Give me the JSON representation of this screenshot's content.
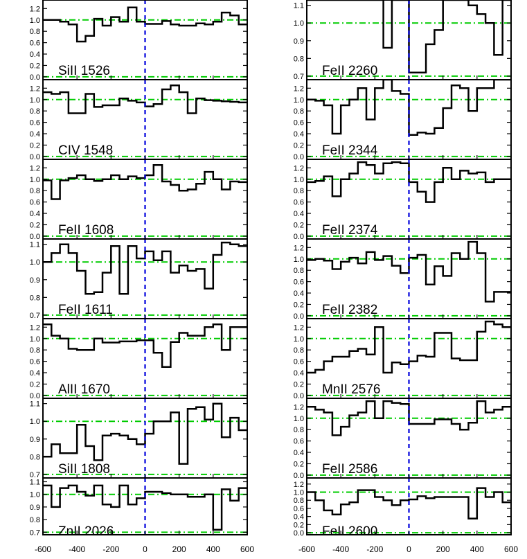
{
  "chart_data": {
    "type": "line",
    "x_range": [
      -600,
      600
    ],
    "x_ticks": [
      -600,
      -400,
      -200,
      0,
      200,
      400,
      600
    ],
    "x_tick_labels": [
      "-600",
      "-400",
      "-200",
      "0",
      "200",
      "400",
      "600"
    ],
    "grid": false,
    "colors": {
      "flux": "#000000",
      "continuum": "#00cc00",
      "zero_velocity": "#0000dd"
    },
    "panels": [
      {
        "label": "SiII 1526",
        "column": 0,
        "ylim": [
          -0.05,
          1.35
        ],
        "yticks": [
          0.0,
          0.2,
          0.4,
          0.6,
          0.8,
          1.0,
          1.2
        ],
        "ytick_labels": [
          "0.0",
          "0.2",
          "0.4",
          "0.6",
          "0.8",
          "1.0",
          "1.2"
        ],
        "continuum": [
          0.0,
          1.0
        ],
        "x": [
          -600,
          -550,
          -500,
          -450,
          -400,
          -350,
          -300,
          -250,
          -200,
          -150,
          -100,
          -50,
          0,
          50,
          100,
          150,
          200,
          250,
          300,
          350,
          400,
          450,
          500,
          550
        ],
        "y": [
          1.0,
          1.0,
          0.97,
          0.92,
          0.62,
          0.72,
          1.02,
          0.9,
          1.05,
          0.97,
          1.22,
          0.97,
          0.93,
          0.93,
          0.98,
          0.92,
          0.9,
          0.9,
          0.94,
          0.92,
          0.97,
          1.13,
          1.08,
          0.92
        ]
      },
      {
        "label": "CIV 1548",
        "column": 0,
        "ylim": [
          -0.05,
          1.35
        ],
        "yticks": [
          0.0,
          0.2,
          0.4,
          0.6,
          0.8,
          1.0,
          1.2
        ],
        "ytick_labels": [
          "0.0",
          "0.2",
          "0.4",
          "0.6",
          "0.8",
          "1.0",
          "1.2"
        ],
        "continuum": [
          0.0,
          1.0
        ],
        "x": [
          -600,
          -550,
          -500,
          -450,
          -400,
          -350,
          -300,
          -250,
          -200,
          -150,
          -100,
          -50,
          0,
          50,
          100,
          150,
          200,
          250,
          300,
          350,
          400,
          450,
          500,
          550
        ],
        "y": [
          1.13,
          1.1,
          1.13,
          0.76,
          0.76,
          1.1,
          0.87,
          0.9,
          0.9,
          1.02,
          0.98,
          0.95,
          0.88,
          0.92,
          1.18,
          1.25,
          1.13,
          0.76,
          1.02,
          0.99,
          0.98,
          0.97,
          0.96,
          0.95
        ]
      },
      {
        "label": "FeII 1608",
        "column": 0,
        "ylim": [
          -0.05,
          1.35
        ],
        "yticks": [
          0.0,
          0.2,
          0.4,
          0.6,
          0.8,
          1.0,
          1.2
        ],
        "ytick_labels": [
          "0.0",
          "0.2",
          "0.4",
          "0.6",
          "0.8",
          "1.0",
          "1.2"
        ],
        "continuum": [
          0.0,
          1.0
        ],
        "x": [
          -600,
          -550,
          -500,
          -450,
          -400,
          -350,
          -300,
          -250,
          -200,
          -150,
          -100,
          -50,
          0,
          50,
          100,
          150,
          200,
          250,
          300,
          350,
          400,
          450,
          500,
          550
        ],
        "y": [
          0.98,
          0.65,
          0.98,
          1.02,
          1.07,
          1.0,
          0.97,
          1.0,
          1.07,
          1.0,
          1.05,
          1.02,
          1.07,
          1.25,
          0.96,
          0.9,
          0.8,
          0.82,
          0.92,
          1.13,
          1.0,
          0.82,
          0.96,
          0.95
        ]
      },
      {
        "label": "FeII 1611",
        "column": 0,
        "ylim": [
          0.68,
          1.13
        ],
        "yticks": [
          0.7,
          0.8,
          0.9,
          1.0,
          1.1
        ],
        "ytick_labels": [
          "0.7",
          "0.8",
          "0.9",
          "1.0",
          "1.1"
        ],
        "continuum": [
          0.7,
          1.0
        ],
        "x": [
          -600,
          -550,
          -500,
          -450,
          -400,
          -350,
          -300,
          -250,
          -200,
          -150,
          -100,
          -50,
          0,
          50,
          100,
          150,
          200,
          250,
          300,
          350,
          400,
          450,
          500,
          550
        ],
        "y": [
          1.0,
          1.05,
          1.1,
          1.05,
          0.95,
          0.82,
          0.83,
          0.94,
          1.09,
          0.82,
          1.09,
          1.02,
          1.06,
          1.01,
          1.06,
          0.94,
          0.98,
          0.95,
          0.96,
          0.85,
          1.04,
          1.11,
          1.1,
          1.09
        ]
      },
      {
        "label": "AlII 1670",
        "column": 0,
        "ylim": [
          -0.05,
          1.35
        ],
        "yticks": [
          0.0,
          0.2,
          0.4,
          0.6,
          0.8,
          1.0,
          1.2
        ],
        "ytick_labels": [
          "0.0",
          "0.2",
          "0.4",
          "0.6",
          "0.8",
          "1.0",
          "1.2"
        ],
        "continuum": [
          0.0,
          1.0
        ],
        "x": [
          -600,
          -550,
          -500,
          -450,
          -400,
          -350,
          -300,
          -250,
          -200,
          -150,
          -100,
          -50,
          0,
          50,
          100,
          150,
          200,
          250,
          300,
          350,
          400,
          450,
          500,
          550
        ],
        "y": [
          1.25,
          1.05,
          1.0,
          0.82,
          0.8,
          0.8,
          1.0,
          0.93,
          0.93,
          0.95,
          0.95,
          0.97,
          0.97,
          0.75,
          0.5,
          0.94,
          1.1,
          1.05,
          1.05,
          1.2,
          1.25,
          0.8,
          1.2,
          1.2
        ]
      },
      {
        "label": "SiII 1808",
        "column": 0,
        "ylim": [
          0.68,
          1.13
        ],
        "yticks": [
          0.7,
          0.8,
          0.9,
          1.0,
          1.1
        ],
        "ytick_labels": [
          "0.7",
          "0.8",
          "0.9",
          "1.0",
          "1.1"
        ],
        "continuum": [
          0.7,
          1.0
        ],
        "x": [
          -600,
          -550,
          -500,
          -450,
          -400,
          -350,
          -300,
          -250,
          -200,
          -150,
          -100,
          -50,
          0,
          50,
          100,
          150,
          200,
          250,
          300,
          350,
          400,
          450,
          500,
          550
        ],
        "y": [
          0.8,
          0.87,
          0.82,
          0.82,
          0.98,
          0.86,
          0.78,
          0.92,
          0.93,
          0.92,
          0.9,
          0.87,
          0.93,
          1.0,
          1.0,
          1.05,
          0.76,
          1.07,
          1.08,
          1.01,
          1.1,
          0.91,
          1.02,
          0.95
        ]
      },
      {
        "label": "ZnII 2026",
        "column": 0,
        "ylim": [
          0.68,
          1.13
        ],
        "yticks": [
          0.7,
          0.8,
          0.9,
          1.0,
          1.1
        ],
        "ytick_labels": [
          "0.7",
          "0.8",
          "0.9",
          "1.0",
          "1.1"
        ],
        "continuum": [
          0.7,
          1.0
        ],
        "x": [
          -600,
          -550,
          -500,
          -450,
          -400,
          -350,
          -300,
          -250,
          -200,
          -150,
          -100,
          -50,
          0,
          50,
          100,
          150,
          200,
          250,
          300,
          350,
          400,
          450,
          500,
          550
        ],
        "y": [
          1.07,
          0.9,
          1.05,
          1.07,
          1.02,
          0.99,
          1.07,
          0.92,
          0.9,
          1.07,
          0.92,
          0.97,
          1.02,
          1.02,
          1.01,
          1.0,
          1.0,
          0.98,
          0.98,
          1.0,
          0.72,
          1.04,
          0.95,
          1.05
        ]
      },
      {
        "label": "FeII 2260",
        "column": 1,
        "ylim": [
          0.68,
          1.13
        ],
        "yticks": [
          0.7,
          0.8,
          0.9,
          1.0,
          1.1
        ],
        "ytick_labels": [
          "0.7",
          "0.8",
          "0.9",
          "1.0",
          "1.1"
        ],
        "continuum": [
          0.7,
          1.0
        ],
        "x": [
          -600,
          -550,
          -500,
          -450,
          -400,
          -350,
          -300,
          -250,
          -200,
          -150,
          -100,
          -50,
          0,
          50,
          100,
          150,
          200,
          250,
          300,
          350,
          400,
          450,
          500,
          550
        ],
        "y": [
          1.13,
          1.13,
          1.13,
          1.13,
          1.13,
          1.13,
          1.13,
          1.13,
          1.13,
          0.86,
          1.13,
          1.13,
          0.72,
          0.72,
          0.88,
          0.96,
          1.13,
          1.13,
          1.13,
          1.1,
          1.05,
          1.0,
          0.82,
          1.13
        ]
      },
      {
        "label": "FeII 2344",
        "column": 1,
        "ylim": [
          -0.05,
          1.35
        ],
        "yticks": [
          0.0,
          0.2,
          0.4,
          0.6,
          0.8,
          1.0,
          1.2
        ],
        "ytick_labels": [
          "0.0",
          "0.2",
          "0.4",
          "0.6",
          "0.8",
          "1.0",
          "1.2"
        ],
        "continuum": [
          0.0,
          1.0
        ],
        "x": [
          -600,
          -550,
          -500,
          -450,
          -400,
          -350,
          -300,
          -250,
          -200,
          -150,
          -100,
          -50,
          0,
          50,
          100,
          150,
          200,
          250,
          300,
          350,
          400,
          450,
          500,
          550
        ],
        "y": [
          1.0,
          0.98,
          0.9,
          0.4,
          0.9,
          1.0,
          1.2,
          0.65,
          1.2,
          1.35,
          1.15,
          1.1,
          0.38,
          0.42,
          0.4,
          0.5,
          0.85,
          1.25,
          1.2,
          0.8,
          1.2,
          1.2,
          1.35,
          1.35
        ]
      },
      {
        "label": "FeII 2374",
        "column": 1,
        "ylim": [
          -0.05,
          1.35
        ],
        "yticks": [
          0.0,
          0.2,
          0.4,
          0.6,
          0.8,
          1.0,
          1.2
        ],
        "ytick_labels": [
          "0.0",
          "0.2",
          "0.4",
          "0.6",
          "0.8",
          "1.0",
          "1.2"
        ],
        "continuum": [
          0.0,
          1.0
        ],
        "x": [
          -600,
          -550,
          -500,
          -450,
          -400,
          -350,
          -300,
          -250,
          -200,
          -150,
          -100,
          -50,
          0,
          50,
          100,
          150,
          200,
          250,
          300,
          350,
          400,
          450,
          500,
          550
        ],
        "y": [
          0.95,
          0.97,
          1.05,
          0.7,
          1.0,
          1.1,
          1.3,
          1.25,
          1.1,
          1.28,
          1.3,
          1.28,
          0.95,
          0.78,
          0.6,
          0.95,
          1.2,
          1.0,
          1.15,
          1.1,
          1.12,
          0.95,
          1.0,
          1.0
        ]
      },
      {
        "label": "FeII 2382",
        "column": 1,
        "ylim": [
          -0.05,
          1.35
        ],
        "yticks": [
          0.0,
          0.2,
          0.4,
          0.6,
          0.8,
          1.0,
          1.2
        ],
        "ytick_labels": [
          "0.0",
          "0.2",
          "0.4",
          "0.6",
          "0.8",
          "1.0",
          "1.2"
        ],
        "continuum": [
          0.0,
          1.0
        ],
        "x": [
          -600,
          -550,
          -500,
          -450,
          -400,
          -350,
          -300,
          -250,
          -200,
          -150,
          -100,
          -50,
          0,
          50,
          100,
          150,
          200,
          250,
          300,
          350,
          400,
          450,
          500,
          550
        ],
        "y": [
          0.98,
          1.0,
          0.97,
          0.82,
          0.95,
          1.02,
          0.92,
          1.12,
          0.98,
          1.05,
          0.88,
          0.75,
          1.02,
          1.07,
          0.55,
          0.87,
          0.7,
          1.1,
          1.0,
          1.3,
          1.1,
          0.25,
          0.42,
          0.42
        ]
      },
      {
        "label": "MnII 2576",
        "column": 1,
        "ylim": [
          -0.05,
          1.35
        ],
        "yticks": [
          0.0,
          0.2,
          0.4,
          0.6,
          0.8,
          1.0,
          1.2
        ],
        "ytick_labels": [
          "0.0",
          "0.2",
          "0.4",
          "0.6",
          "0.8",
          "1.0",
          "1.2"
        ],
        "continuum": [
          0.0,
          1.0
        ],
        "x": [
          -600,
          -550,
          -500,
          -450,
          -400,
          -350,
          -300,
          -250,
          -200,
          -150,
          -100,
          -50,
          0,
          50,
          100,
          150,
          200,
          250,
          300,
          350,
          400,
          450,
          500,
          550
        ],
        "y": [
          0.4,
          0.45,
          0.6,
          0.68,
          0.68,
          0.78,
          0.82,
          0.72,
          1.2,
          0.4,
          0.58,
          0.55,
          0.6,
          0.7,
          0.68,
          1.1,
          1.1,
          0.65,
          0.62,
          0.62,
          1.12,
          1.3,
          1.25,
          1.2
        ]
      },
      {
        "label": "FeII 2586",
        "column": 1,
        "ylim": [
          -0.05,
          1.35
        ],
        "yticks": [
          0.0,
          0.2,
          0.4,
          0.6,
          0.8,
          1.0,
          1.2
        ],
        "ytick_labels": [
          "0.0",
          "0.2",
          "0.4",
          "0.6",
          "0.8",
          "1.0",
          "1.2"
        ],
        "continuum": [
          0.0,
          1.0
        ],
        "x": [
          -600,
          -550,
          -500,
          -450,
          -400,
          -350,
          -300,
          -250,
          -200,
          -150,
          -100,
          -50,
          0,
          50,
          100,
          150,
          200,
          250,
          300,
          350,
          400,
          450,
          500,
          550
        ],
        "y": [
          1.2,
          1.15,
          1.1,
          0.7,
          0.85,
          1.05,
          1.1,
          1.3,
          1.0,
          1.3,
          1.27,
          1.25,
          0.9,
          0.9,
          0.9,
          0.98,
          0.98,
          0.9,
          0.8,
          0.92,
          1.3,
          1.1,
          1.15,
          1.2
        ]
      },
      {
        "label": "FeII 2600",
        "column": 1,
        "ylim": [
          -0.05,
          1.35
        ],
        "yticks": [
          0.0,
          0.2,
          0.4,
          0.6,
          0.8,
          1.0,
          1.2
        ],
        "ytick_labels": [
          "0.0",
          "0.2",
          "0.4",
          "0.6",
          "0.8",
          "1.0",
          "1.2"
        ],
        "continuum": [
          0.0,
          1.0
        ],
        "x": [
          -600,
          -550,
          -500,
          -450,
          -400,
          -350,
          -300,
          -250,
          -200,
          -150,
          -100,
          -50,
          0,
          50,
          100,
          150,
          200,
          250,
          300,
          350,
          400,
          450,
          500,
          550
        ],
        "y": [
          1.0,
          0.8,
          0.55,
          0.45,
          0.7,
          0.75,
          1.05,
          1.05,
          0.88,
          0.8,
          0.68,
          0.8,
          0.82,
          0.9,
          0.85,
          0.88,
          0.88,
          0.88,
          0.88,
          0.35,
          1.1,
          0.88,
          1.0,
          0.75
        ]
      }
    ]
  }
}
